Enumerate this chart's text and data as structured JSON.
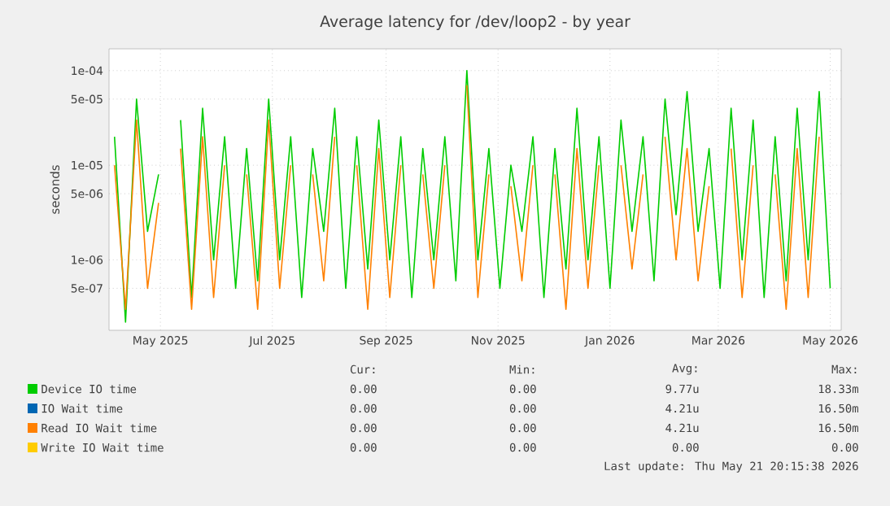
{
  "chart_data": {
    "type": "line",
    "title": "Average latency for /dev/loop2 - by year",
    "ylabel": "seconds",
    "log": true,
    "grid": true,
    "legend": "bottom",
    "marker": "none",
    "xlim": [
      "2025-04-17",
      "2026-05-21"
    ],
    "ylim": [
      1.8e-07,
      0.00017
    ],
    "xticks": [
      {
        "value": "2025-05-15",
        "label": "May 2025"
      },
      {
        "value": "2025-07-15",
        "label": "Jul 2025"
      },
      {
        "value": "2025-09-15",
        "label": "Sep 2025"
      },
      {
        "value": "2025-11-15",
        "label": "Nov 2025"
      },
      {
        "value": "2026-01-15",
        "label": "Jan 2026"
      },
      {
        "value": "2026-03-15",
        "label": "Mar 2026"
      },
      {
        "value": "2026-05-15",
        "label": "May 2026"
      }
    ],
    "yticks": [
      {
        "value": 5e-07,
        "label": "5e-07"
      },
      {
        "value": 1e-06,
        "label": "1e-06"
      },
      {
        "value": 5e-06,
        "label": "5e-06"
      },
      {
        "value": 1e-05,
        "label": "1e-05"
      },
      {
        "value": 5e-05,
        "label": "5e-05"
      },
      {
        "value": 0.0001,
        "label": "1e-04"
      }
    ],
    "x": [
      "2025-04-20",
      "2025-04-26",
      "2025-05-02",
      "2025-05-08",
      "2025-05-14",
      "2025-05-20",
      "2025-05-26",
      "2025-06-01",
      "2025-06-07",
      "2025-06-13",
      "2025-06-19",
      "2025-06-25",
      "2025-07-01",
      "2025-07-07",
      "2025-07-13",
      "2025-07-19",
      "2025-07-25",
      "2025-07-31",
      "2025-08-06",
      "2025-08-12",
      "2025-08-18",
      "2025-08-24",
      "2025-08-30",
      "2025-09-05",
      "2025-09-11",
      "2025-09-17",
      "2025-09-23",
      "2025-09-29",
      "2025-10-05",
      "2025-10-11",
      "2025-10-17",
      "2025-10-23",
      "2025-10-29",
      "2025-11-04",
      "2025-11-10",
      "2025-11-16",
      "2025-11-22",
      "2025-11-28",
      "2025-12-04",
      "2025-12-10",
      "2025-12-16",
      "2025-12-22",
      "2025-12-28",
      "2026-01-03",
      "2026-01-09",
      "2026-01-15",
      "2026-01-21",
      "2026-01-27",
      "2026-02-02",
      "2026-02-08",
      "2026-02-14",
      "2026-02-20",
      "2026-02-26",
      "2026-03-04",
      "2026-03-10",
      "2026-03-16",
      "2026-03-22",
      "2026-03-28",
      "2026-04-03",
      "2026-04-09",
      "2026-04-15",
      "2026-04-21",
      "2026-04-27",
      "2026-05-03",
      "2026-05-09",
      "2026-05-15"
    ],
    "series": [
      {
        "name": "Device IO time",
        "color": "#00cc00",
        "values": [
          2e-05,
          2.2e-07,
          5e-05,
          2e-06,
          8e-06,
          null,
          3e-05,
          4e-07,
          4e-05,
          1e-06,
          2e-05,
          5e-07,
          1.5e-05,
          6e-07,
          5e-05,
          1e-06,
          2e-05,
          4e-07,
          1.5e-05,
          2e-06,
          4e-05,
          5e-07,
          2e-05,
          8e-07,
          3e-05,
          1e-06,
          2e-05,
          4e-07,
          1.5e-05,
          1e-06,
          2e-05,
          6e-07,
          0.0001,
          1e-06,
          1.5e-05,
          5e-07,
          1e-05,
          2e-06,
          2e-05,
          4e-07,
          1.5e-05,
          8e-07,
          4e-05,
          1e-06,
          2e-05,
          5e-07,
          3e-05,
          2e-06,
          2e-05,
          6e-07,
          5e-05,
          3e-06,
          6e-05,
          2e-06,
          1.5e-05,
          5e-07,
          4e-05,
          1e-06,
          3e-05,
          4e-07,
          2e-05,
          6e-07,
          4e-05,
          1e-06,
          6e-05,
          5e-07
        ]
      },
      {
        "name": "IO Wait time",
        "color": "#0066b3",
        "values": [
          null,
          null,
          null,
          null,
          null,
          null,
          null,
          null,
          null,
          null,
          null,
          null,
          null,
          null,
          null,
          null,
          null,
          null,
          null,
          null,
          null,
          null,
          null,
          null,
          null,
          null,
          null,
          null,
          null,
          null,
          null,
          null,
          null,
          null,
          null,
          null,
          null,
          null,
          null,
          null,
          null,
          null,
          null,
          null,
          null,
          null,
          null,
          null,
          null,
          null,
          null,
          null,
          null,
          null,
          null,
          null,
          null,
          null,
          null,
          null,
          null,
          null,
          null,
          null,
          null,
          null
        ]
      },
      {
        "name": "Read IO Wait time",
        "color": "#ff8000",
        "values": [
          1e-05,
          3e-07,
          3e-05,
          5e-07,
          4e-06,
          null,
          1.5e-05,
          3e-07,
          2e-05,
          4e-07,
          1e-05,
          null,
          8e-06,
          3e-07,
          3e-05,
          5e-07,
          1e-05,
          null,
          8e-06,
          6e-07,
          2e-05,
          null,
          1e-05,
          3e-07,
          1.5e-05,
          4e-07,
          1e-05,
          null,
          8e-06,
          5e-07,
          1e-05,
          null,
          7e-05,
          4e-07,
          8e-06,
          null,
          6e-06,
          6e-07,
          1e-05,
          null,
          8e-06,
          3e-07,
          1.5e-05,
          5e-07,
          1e-05,
          null,
          1e-05,
          8e-07,
          8e-06,
          null,
          2e-05,
          1e-06,
          1.5e-05,
          6e-07,
          6e-06,
          null,
          1.5e-05,
          4e-07,
          1e-05,
          null,
          8e-06,
          3e-07,
          1.5e-05,
          4e-07,
          2e-05,
          null
        ]
      },
      {
        "name": "Write IO Wait time",
        "color": "#ffcc00",
        "values": [
          null,
          null,
          null,
          null,
          null,
          null,
          null,
          null,
          null,
          null,
          null,
          null,
          null,
          null,
          null,
          null,
          null,
          null,
          null,
          null,
          null,
          null,
          null,
          null,
          null,
          null,
          null,
          null,
          null,
          null,
          null,
          null,
          null,
          null,
          null,
          null,
          null,
          null,
          null,
          null,
          null,
          null,
          null,
          null,
          null,
          null,
          null,
          null,
          null,
          null,
          null,
          null,
          null,
          null,
          null,
          null,
          null,
          null,
          null,
          null,
          null,
          null,
          null,
          null,
          null,
          null
        ]
      }
    ],
    "annotations": [
      "Cur:",
      "Min:",
      "Avg:",
      "Max:",
      "0.00",
      "0.00",
      "9.77u",
      "18.33m",
      "0.00",
      "0.00",
      "4.21u",
      "16.50m",
      "0.00",
      "0.00",
      "4.21u",
      "16.50m",
      "0.00",
      "0.00",
      "0.00",
      "0.00",
      "Last update: Thu May 21 20:15:38 2026"
    ]
  }
}
